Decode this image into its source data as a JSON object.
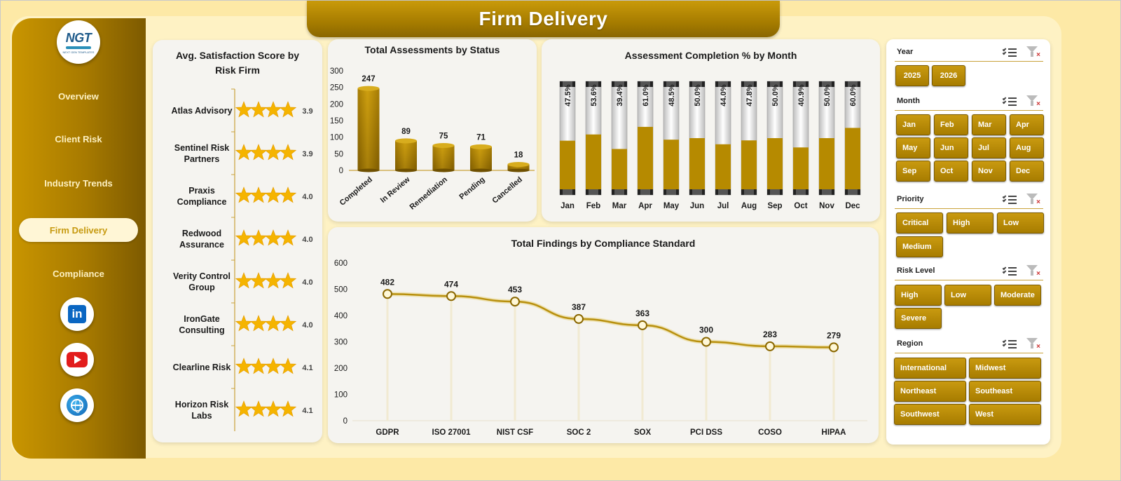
{
  "title": "Firm Delivery",
  "logo": {
    "text": "NGT",
    "subtext": "NEXT GEN TEMPLATES"
  },
  "nav": {
    "items": [
      {
        "label": "Overview",
        "active": false
      },
      {
        "label": "Client Risk",
        "active": false
      },
      {
        "label": "Industry Trends",
        "active": false
      },
      {
        "label": "Firm Delivery",
        "active": true
      },
      {
        "label": "Compliance",
        "active": false
      }
    ]
  },
  "social": [
    {
      "icon": "linkedin-icon"
    },
    {
      "icon": "youtube-icon"
    },
    {
      "icon": "website-globe-icon"
    }
  ],
  "colors": {
    "gold": "#b88a00",
    "gold_dark": "#8a6700",
    "star": "#f5b400",
    "line": "#b8900e"
  },
  "chart_data": [
    {
      "type": "bar",
      "title": "Avg. Satisfaction Score by Risk Firm",
      "display": "star-rating",
      "categories": [
        "Atlas Advisory",
        "Sentinel Risk Partners",
        "Praxis Compliance",
        "Redwood Assurance",
        "Verity Control Group",
        "IronGate Consulting",
        "Clearline Risk",
        "Horizon Risk Labs"
      ],
      "values": [
        3.9,
        3.9,
        4.0,
        4.0,
        4.0,
        4.0,
        4.1,
        4.1
      ],
      "value_labels": [
        "3.9",
        "3.9",
        "4.0",
        "4.0",
        "4.0",
        "4.0",
        "4.1",
        "4.1"
      ],
      "stars_shown": 4
    },
    {
      "type": "bar",
      "title": "Total Assessments by Status",
      "categories": [
        "Completed",
        "In Review",
        "Remediation",
        "Pending",
        "Cancelled"
      ],
      "values": [
        247,
        89,
        75,
        71,
        18
      ],
      "yticks": [
        "0",
        "50",
        "100",
        "150",
        "200",
        "250",
        "300"
      ],
      "ylim": [
        0,
        300
      ]
    },
    {
      "type": "bar",
      "title": "Assessment Completion % by Month",
      "categories": [
        "Jan",
        "Feb",
        "Mar",
        "Apr",
        "May",
        "Jun",
        "Jul",
        "Aug",
        "Sep",
        "Oct",
        "Nov",
        "Dec"
      ],
      "values": [
        47.5,
        53.6,
        39.4,
        61.0,
        48.5,
        50.0,
        44.0,
        47.8,
        50.0,
        40.9,
        50.0,
        60.0
      ],
      "value_labels": [
        "47.5%",
        "53.6%",
        "39.4%",
        "61.0%",
        "48.5%",
        "50.0%",
        "44.0%",
        "47.8%",
        "50.0%",
        "40.9%",
        "50.0%",
        "60.0%"
      ],
      "ylim": [
        0,
        100
      ]
    },
    {
      "type": "line",
      "title": "Total Findings by Compliance Standard",
      "categories": [
        "GDPR",
        "ISO 27001",
        "NIST CSF",
        "SOC 2",
        "SOX",
        "PCI DSS",
        "COSO",
        "HIPAA"
      ],
      "values": [
        482,
        474,
        453,
        387,
        363,
        300,
        283,
        279
      ],
      "yticks": [
        "0",
        "100",
        "200",
        "300",
        "400",
        "500",
        "600"
      ],
      "ylim": [
        0,
        600
      ]
    }
  ],
  "filters": {
    "year": {
      "label": "Year",
      "options": [
        "2025",
        "2026"
      ]
    },
    "month": {
      "label": "Month",
      "options": [
        "Jan",
        "Feb",
        "Mar",
        "Apr",
        "May",
        "Jun",
        "Jul",
        "Aug",
        "Sep",
        "Oct",
        "Nov",
        "Dec"
      ]
    },
    "priority": {
      "label": "Priority",
      "options": [
        "Critical",
        "High",
        "Low",
        "Medium"
      ]
    },
    "risk_level": {
      "label": "Risk Level",
      "options": [
        "High",
        "Low",
        "Moderate",
        "Severe"
      ]
    },
    "region": {
      "label": "Region",
      "options": [
        "International",
        "Midwest",
        "Northeast",
        "Southeast",
        "Southwest",
        "West"
      ]
    }
  }
}
